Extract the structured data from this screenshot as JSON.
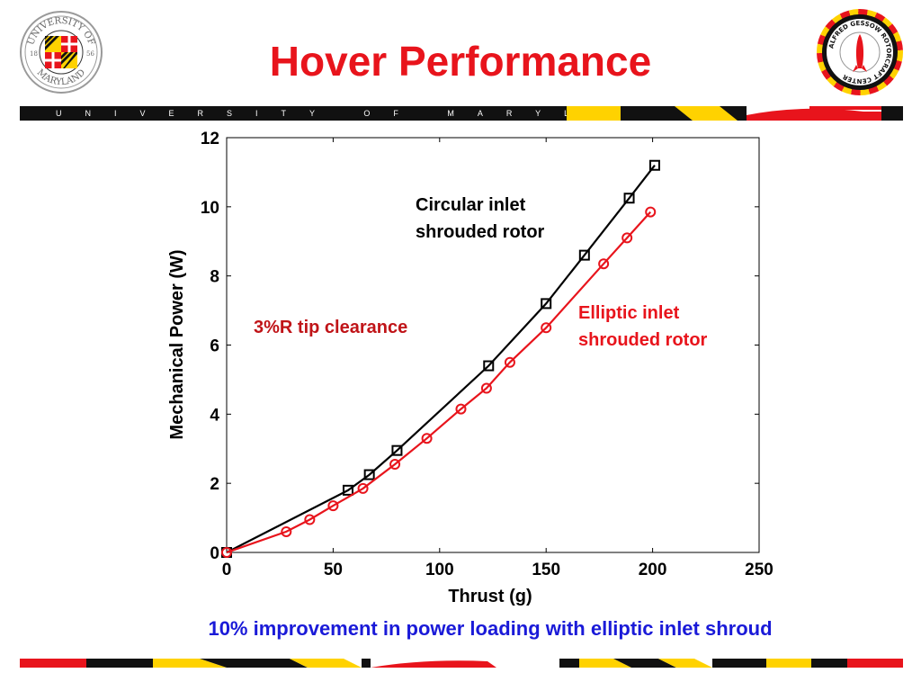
{
  "title": "Hover Performance",
  "logos": {
    "umd_seal": {
      "text_top": "UNIVERSITY OF",
      "text_bottom": "MARYLAND",
      "year_left": "18",
      "year_right": "56"
    },
    "rotorcraft_center": {
      "text": "ALFRED GESSOW ROTORCRAFT CENTER"
    }
  },
  "banner": {
    "text": "UNIVERSITY OF MARYLAND"
  },
  "colors": {
    "title": "#e8141c",
    "circular_series": "#000000",
    "elliptic_series": "#e8141c",
    "clearance_annotation": "#c01418",
    "caption": "#1a1ad8",
    "umd_red": "#e8141c",
    "umd_gold": "#ffd200",
    "umd_black": "#111111"
  },
  "chart_data": {
    "type": "line",
    "xlabel": "Thrust (g)",
    "ylabel": "Mechanical Power (W)",
    "xlim": [
      0,
      250
    ],
    "ylim": [
      0,
      12
    ],
    "xticks": [
      0,
      50,
      100,
      150,
      200,
      250
    ],
    "yticks": [
      0,
      2,
      4,
      6,
      8,
      10,
      12
    ],
    "grid": false,
    "series": [
      {
        "name": "Circular inlet shrouded rotor",
        "marker": "square",
        "x": [
          0,
          57,
          67,
          80,
          123,
          150,
          168,
          189,
          201
        ],
        "y": [
          0,
          1.8,
          2.25,
          2.95,
          5.4,
          7.2,
          8.6,
          10.25,
          11.2
        ]
      },
      {
        "name": "Elliptic inlet shrouded rotor",
        "marker": "circle",
        "x": [
          0,
          28,
          39,
          50,
          64,
          79,
          94,
          110,
          122,
          133,
          150,
          177,
          188,
          199
        ],
        "y": [
          0,
          0.6,
          0.95,
          1.35,
          1.85,
          2.55,
          3.3,
          4.15,
          4.75,
          5.5,
          6.5,
          8.35,
          9.1,
          9.85
        ]
      }
    ],
    "annotations": {
      "circular_line1": "Circular inlet",
      "circular_line2": "shrouded rotor",
      "elliptic_line1": "Elliptic inlet",
      "elliptic_line2": "shrouded rotor",
      "clearance": "3%R tip clearance"
    }
  },
  "caption": "10% improvement in power loading with elliptic inlet shroud"
}
